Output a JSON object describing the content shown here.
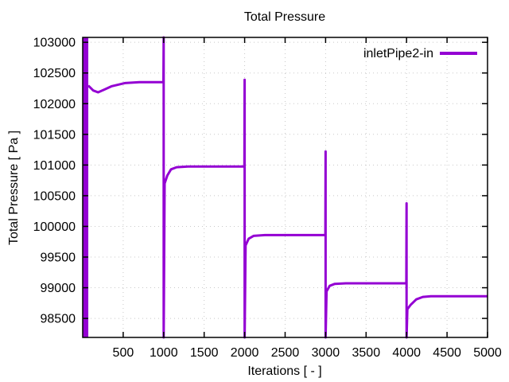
{
  "chart_data": {
    "type": "line",
    "title": "Total Pressure",
    "xlabel": "Iterations [ - ]",
    "ylabel": "Total Pressure [ Pa ]",
    "xlim": [
      0,
      5000
    ],
    "ylim": [
      98190,
      103080
    ],
    "xticks": [
      500,
      1000,
      1500,
      2000,
      2500,
      3000,
      3500,
      4000,
      4500,
      5000
    ],
    "yticks": [
      98500,
      99000,
      99500,
      100000,
      100500,
      101000,
      101500,
      102000,
      102500,
      103000
    ],
    "grid": true,
    "grid_color": "#c8c8c8",
    "border_color": "#000000",
    "legend_position": "top-right-inside",
    "series": [
      {
        "name": "inletPipe2-in",
        "color": "#9400d3",
        "transient_band": {
          "x_start": 4,
          "x_end": 69,
          "y_min": 98190,
          "y_max": 103080,
          "note": "initial oscillating transient clipped to plot height"
        },
        "points": [
          [
            69,
            102295
          ],
          [
            130,
            102215
          ],
          [
            190,
            102185
          ],
          [
            260,
            102225
          ],
          [
            360,
            102285
          ],
          [
            520,
            102335
          ],
          [
            700,
            102350
          ],
          [
            997,
            102350
          ],
          [
            1000,
            103080
          ],
          [
            1000,
            98190
          ],
          [
            1012,
            100700
          ],
          [
            1045,
            100830
          ],
          [
            1090,
            100930
          ],
          [
            1160,
            100965
          ],
          [
            1300,
            100975
          ],
          [
            1997,
            100975
          ],
          [
            2000,
            102390
          ],
          [
            2000,
            98190
          ],
          [
            2012,
            99690
          ],
          [
            2050,
            99800
          ],
          [
            2110,
            99845
          ],
          [
            2250,
            99858
          ],
          [
            2997,
            99858
          ],
          [
            3000,
            101220
          ],
          [
            3000,
            98190
          ],
          [
            3012,
            98940
          ],
          [
            3050,
            99030
          ],
          [
            3110,
            99062
          ],
          [
            3250,
            99072
          ],
          [
            3997,
            99072
          ],
          [
            4000,
            100375
          ],
          [
            4000,
            98190
          ],
          [
            4010,
            98650
          ],
          [
            4050,
            98720
          ],
          [
            4120,
            98810
          ],
          [
            4200,
            98850
          ],
          [
            4300,
            98862
          ],
          [
            5000,
            98862
          ]
        ]
      }
    ]
  }
}
